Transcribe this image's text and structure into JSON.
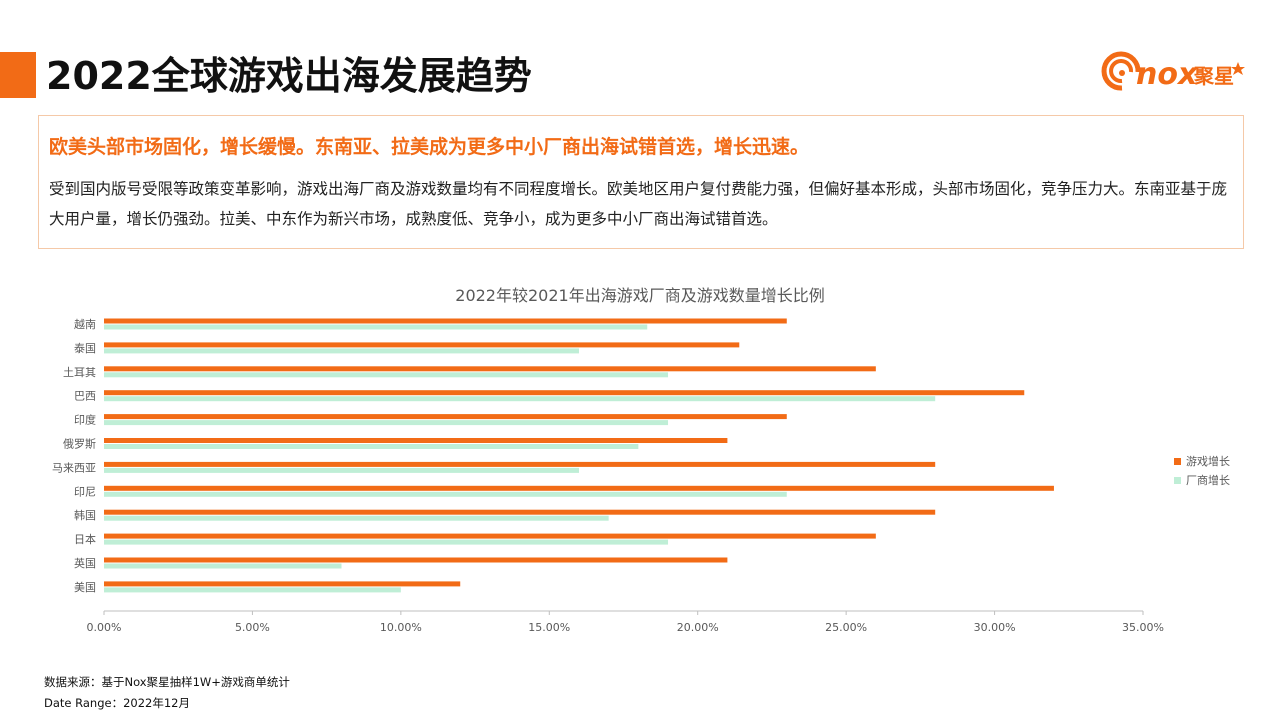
{
  "header": {
    "title": "2022全球游戏出海发展趋势",
    "logo_text": "nox",
    "logo_cn": "聚星"
  },
  "summary": {
    "headline": "欧美头部市场固化，增长缓慢。东南亚、拉美成为更多中小厂商出海试错首选，增长迅速。",
    "body": "受到国内版号受限等政策变革影响，游戏出海厂商及游戏数量均有不同程度增长。欧美地区用户复付费能力强，但偏好基本形成，头部市场固化，竞争压力大。东南亚基于庞大用户量，增长仍强劲。拉美、中东作为新兴市场，成熟度低、竞争小，成为更多中小厂商出海试错首选。"
  },
  "footer": {
    "source": "数据来源：基于Nox聚星抽样1W+游戏商单统计",
    "date_range": "Date Range：2022年12月"
  },
  "colors": {
    "accent": "#f26b16",
    "series_game": "#f26b16",
    "series_vendor": "#bfeed6",
    "axis": "#bfbfbf",
    "text": "#595959"
  },
  "chart_data": {
    "type": "bar",
    "orientation": "horizontal",
    "title": "2022年较2021年出海游戏厂商及游戏数量增长比例",
    "categories": [
      "越南",
      "泰国",
      "土耳其",
      "巴西",
      "印度",
      "俄罗斯",
      "马来西亚",
      "印尼",
      "韩国",
      "日本",
      "英国",
      "美国"
    ],
    "series": [
      {
        "name": "游戏增长",
        "values": [
          0.23,
          0.214,
          0.26,
          0.31,
          0.23,
          0.21,
          0.28,
          0.32,
          0.28,
          0.26,
          0.21,
          0.12
        ]
      },
      {
        "name": "厂商增长",
        "values": [
          0.183,
          0.16,
          0.19,
          0.28,
          0.19,
          0.18,
          0.16,
          0.23,
          0.17,
          0.19,
          0.08,
          0.1
        ]
      }
    ],
    "xlim": [
      0,
      0.35
    ],
    "xticks": [
      0,
      0.05,
      0.1,
      0.15,
      0.2,
      0.25,
      0.3,
      0.35
    ],
    "xtick_labels": [
      "0.00%",
      "5.00%",
      "10.00%",
      "15.00%",
      "20.00%",
      "25.00%",
      "30.00%",
      "35.00%"
    ],
    "legend_position": "right",
    "xlabel": "",
    "ylabel": ""
  }
}
